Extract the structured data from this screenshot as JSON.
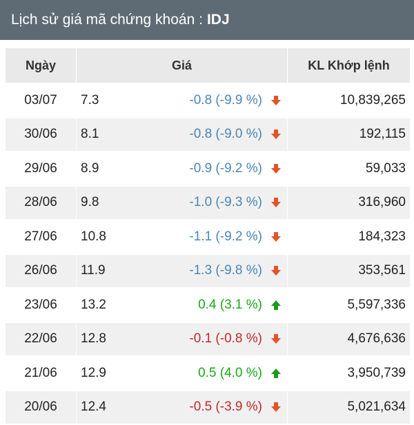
{
  "header": {
    "title_prefix": "Lịch sử giá mã chứng khoán :",
    "ticker": "IDJ"
  },
  "colors": {
    "down_blue": "#4a86b4",
    "down_red": "#c0282a",
    "up_green": "#1aa81a",
    "arrow_down": "#e2532a",
    "arrow_up": "#1d9a1d",
    "header_bg": "#5f6b74"
  },
  "table": {
    "columns": {
      "date": "Ngày",
      "price": "Giá",
      "volume": "KL Khớp lệnh"
    },
    "rows": [
      {
        "date": "03/07",
        "close": "7.3",
        "change": "-0.8 (-9.9 %)",
        "direction": "down",
        "tone": "blue",
        "volume": "10,839,265"
      },
      {
        "date": "30/06",
        "close": "8.1",
        "change": "-0.8 (-9.0 %)",
        "direction": "down",
        "tone": "blue",
        "volume": "192,115"
      },
      {
        "date": "29/06",
        "close": "8.9",
        "change": "-0.9 (-9.2 %)",
        "direction": "down",
        "tone": "blue",
        "volume": "59,033"
      },
      {
        "date": "28/06",
        "close": "9.8",
        "change": "-1.0 (-9.3 %)",
        "direction": "down",
        "tone": "blue",
        "volume": "316,960"
      },
      {
        "date": "27/06",
        "close": "10.8",
        "change": "-1.1 (-9.2 %)",
        "direction": "down",
        "tone": "blue",
        "volume": "184,323"
      },
      {
        "date": "26/06",
        "close": "11.9",
        "change": "-1.3 (-9.8 %)",
        "direction": "down",
        "tone": "blue",
        "volume": "353,561"
      },
      {
        "date": "23/06",
        "close": "13.2",
        "change": "0.4 (3.1 %)",
        "direction": "up",
        "tone": "green",
        "volume": "5,597,336"
      },
      {
        "date": "22/06",
        "close": "12.8",
        "change": "-0.1 (-0.8 %)",
        "direction": "down",
        "tone": "red",
        "volume": "4,676,636"
      },
      {
        "date": "21/06",
        "close": "12.9",
        "change": "0.5 (4.0 %)",
        "direction": "up",
        "tone": "green",
        "volume": "3,950,739"
      },
      {
        "date": "20/06",
        "close": "12.4",
        "change": "-0.5 (-3.9 %)",
        "direction": "down",
        "tone": "red",
        "volume": "5,021,634"
      }
    ]
  }
}
